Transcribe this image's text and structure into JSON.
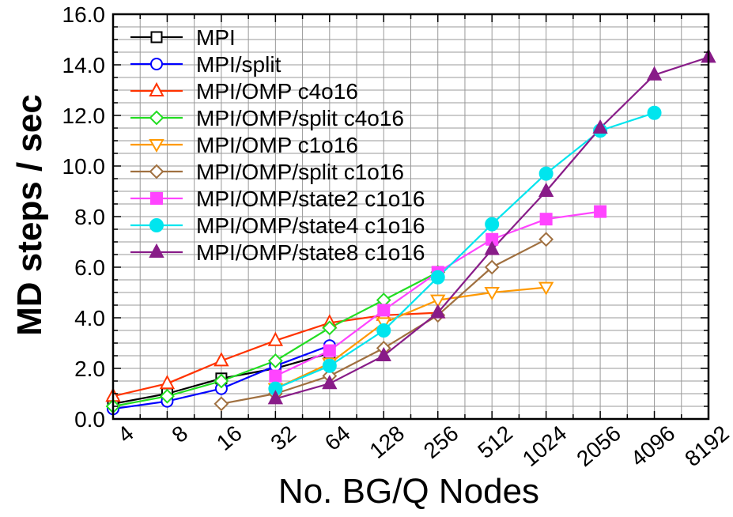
{
  "chart_data": {
    "type": "line",
    "xlabel": "No. BG/Q Nodes",
    "ylabel": "MD steps / sec",
    "categories": [
      "4",
      "8",
      "16",
      "32",
      "64",
      "128",
      "256",
      "512",
      "1024",
      "2056",
      "4096",
      "8192"
    ],
    "yticks": [
      "0.0",
      "2.0",
      "4.0",
      "6.0",
      "8.0",
      "10.0",
      "12.0",
      "14.0",
      "16.0"
    ],
    "ylim": [
      0,
      16
    ],
    "grid": true,
    "legend_position": "top-left",
    "series": [
      {
        "name": "MPI",
        "color": "#000000",
        "marker": "square-open",
        "points": [
          [
            0,
            0.6
          ],
          [
            1,
            1.0
          ],
          [
            2,
            1.6
          ],
          [
            3,
            2.0
          ],
          [
            4,
            2.6
          ]
        ]
      },
      {
        "name": "MPI/split",
        "color": "#0000ff",
        "marker": "circle-open",
        "points": [
          [
            0,
            0.4
          ],
          [
            1,
            0.7
          ],
          [
            2,
            1.2
          ],
          [
            3,
            2.1
          ],
          [
            4,
            2.9
          ]
        ]
      },
      {
        "name": "MPI/OMP c4o16",
        "color": "#ff3300",
        "marker": "triangle-open",
        "points": [
          [
            0,
            0.9
          ],
          [
            1,
            1.4
          ],
          [
            2,
            2.3
          ],
          [
            3,
            3.1
          ],
          [
            4,
            3.8
          ],
          [
            5,
            4.1
          ],
          [
            6,
            4.2
          ]
        ]
      },
      {
        "name": "MPI/OMP/split c4o16",
        "color": "#22dd22",
        "marker": "diamond-open",
        "points": [
          [
            0,
            0.5
          ],
          [
            1,
            0.9
          ],
          [
            2,
            1.5
          ],
          [
            3,
            2.3
          ],
          [
            4,
            3.6
          ],
          [
            5,
            4.7
          ],
          [
            6,
            5.8
          ]
        ]
      },
      {
        "name": "MPI/OMP c1o16",
        "color": "#ff9900",
        "marker": "triangle-down-open",
        "points": [
          [
            3,
            1.2
          ],
          [
            4,
            2.2
          ],
          [
            5,
            3.8
          ],
          [
            6,
            4.7
          ],
          [
            7,
            5.0
          ],
          [
            8,
            5.2
          ]
        ]
      },
      {
        "name": "MPI/OMP/split c1o16",
        "color": "#a07040",
        "marker": "diamond-open",
        "points": [
          [
            2,
            0.6
          ],
          [
            3,
            1.0
          ],
          [
            4,
            1.7
          ],
          [
            5,
            2.8
          ],
          [
            6,
            4.1
          ],
          [
            7,
            6.0
          ],
          [
            8,
            7.1
          ]
        ]
      },
      {
        "name": "MPI/OMP/state2 c1o16",
        "color": "#ff44ff",
        "marker": "square-filled",
        "points": [
          [
            3,
            1.7
          ],
          [
            4,
            2.7
          ],
          [
            5,
            4.3
          ],
          [
            6,
            5.8
          ],
          [
            7,
            7.1
          ],
          [
            8,
            7.9
          ],
          [
            9,
            8.2
          ]
        ]
      },
      {
        "name": "MPI/OMP/state4 c1o16",
        "color": "#00e5ee",
        "marker": "circle-filled",
        "points": [
          [
            3,
            1.2
          ],
          [
            4,
            2.1
          ],
          [
            5,
            3.5
          ],
          [
            6,
            5.6
          ],
          [
            7,
            7.7
          ],
          [
            8,
            9.7
          ],
          [
            9,
            11.4
          ],
          [
            10,
            12.1
          ]
        ]
      },
      {
        "name": "MPI/OMP/state8 c1o16",
        "color": "#881c88",
        "marker": "triangle-filled",
        "points": [
          [
            3,
            0.8
          ],
          [
            4,
            1.4
          ],
          [
            5,
            2.5
          ],
          [
            6,
            4.2
          ],
          [
            7,
            6.7
          ],
          [
            8,
            9.0
          ],
          [
            9,
            11.5
          ],
          [
            10,
            13.6
          ],
          [
            11,
            14.3
          ]
        ]
      }
    ]
  }
}
